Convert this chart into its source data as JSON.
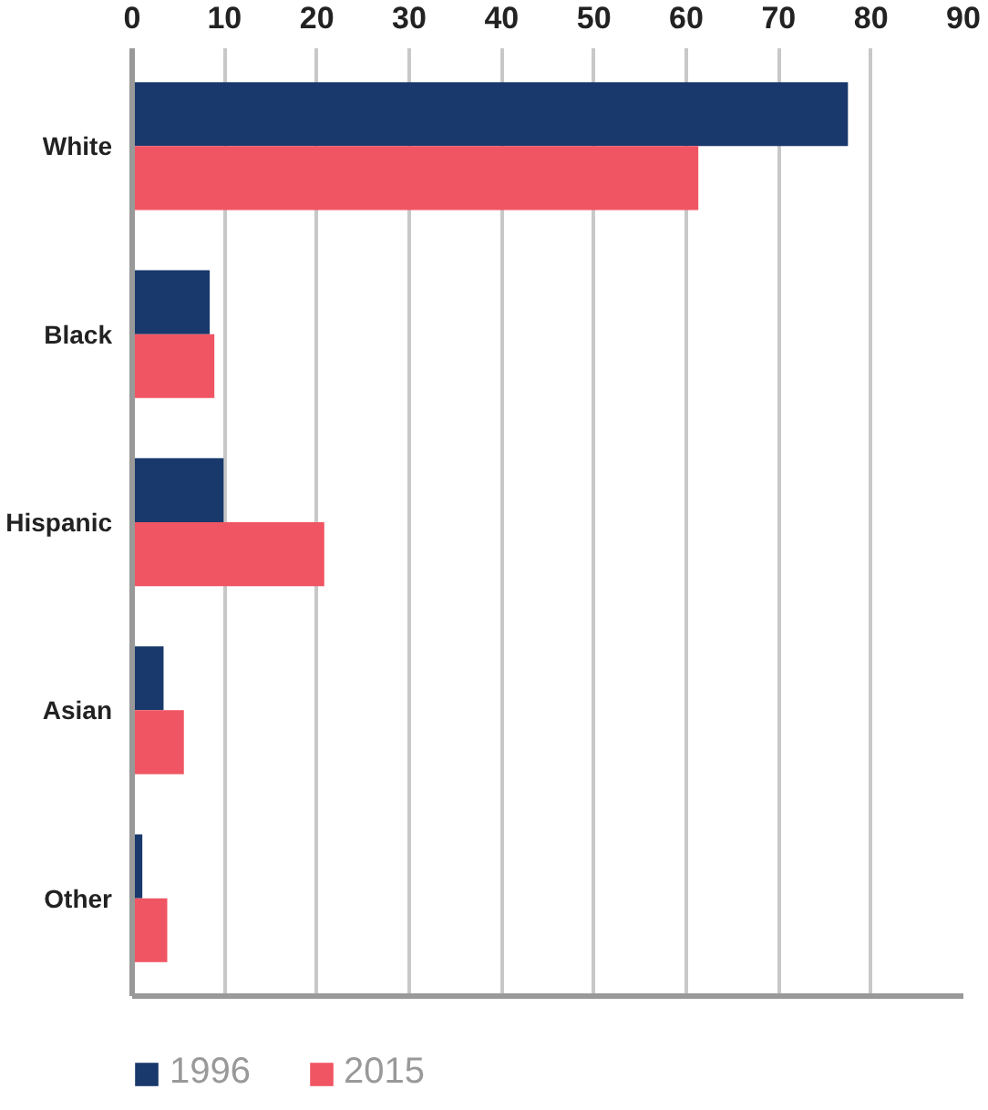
{
  "chart_data": {
    "type": "bar",
    "orientation": "horizontal",
    "categories": [
      "White",
      "Black",
      "Hispanic",
      "Asian",
      "Other"
    ],
    "series": [
      {
        "name": "1996",
        "color": "#19386b",
        "values": [
          77.5,
          8.4,
          9.9,
          3.4,
          1.1
        ]
      },
      {
        "name": "2015",
        "color": "#f05563",
        "values": [
          61.3,
          8.9,
          20.8,
          5.6,
          3.8
        ]
      }
    ],
    "xlim": [
      0,
      90
    ],
    "xticks": [
      0,
      10,
      20,
      30,
      40,
      50,
      60,
      70,
      80,
      90
    ],
    "grid": "x",
    "legend": "bottom left"
  }
}
